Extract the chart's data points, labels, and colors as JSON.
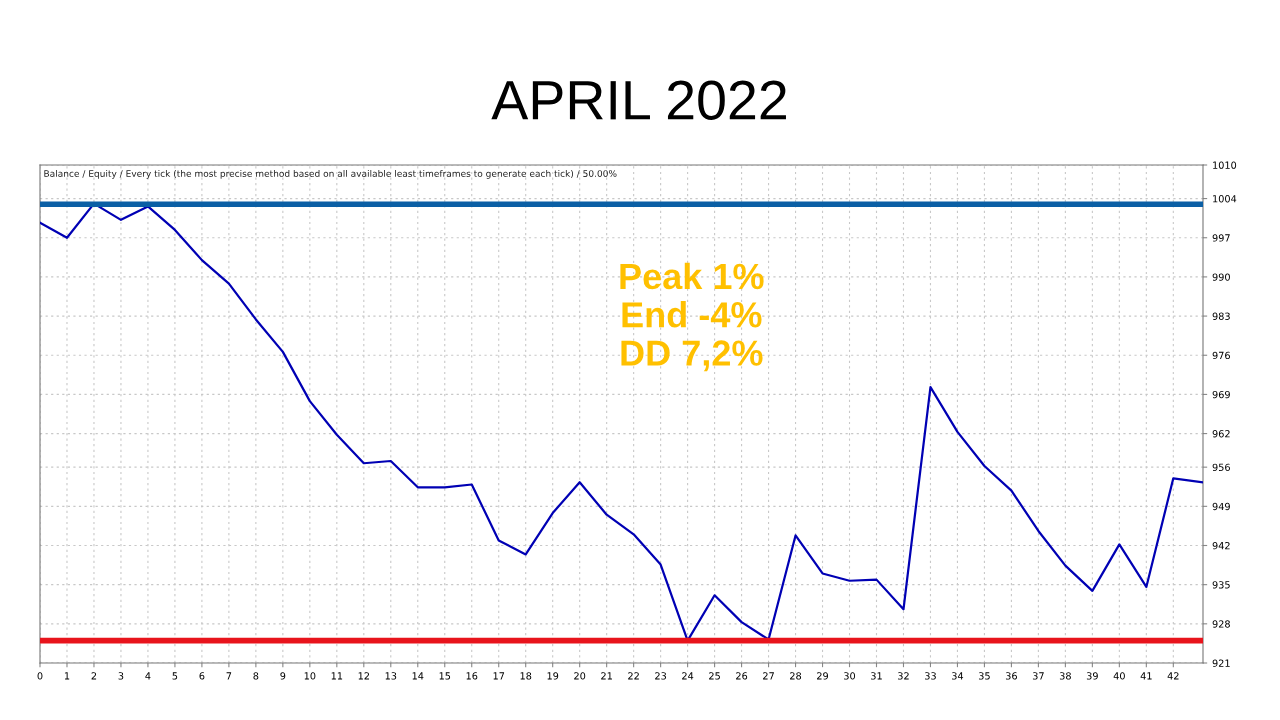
{
  "chart_data": {
    "type": "line",
    "title": "APRIL 2022",
    "subtitle": "Balance / Equity / Every tick (the most precise method based on all available least timeframes to generate each tick) / 50.00%",
    "x": [
      0,
      1,
      2,
      3,
      4,
      5,
      6,
      7,
      8,
      9,
      10,
      11,
      12,
      13,
      14,
      15,
      16,
      17,
      18,
      19,
      20,
      21,
      22,
      23,
      24,
      25,
      26,
      27,
      28,
      29,
      30,
      31,
      32,
      33,
      34,
      35,
      36,
      37,
      38,
      39,
      40,
      41,
      42,
      43.1
    ],
    "series": [
      {
        "color": "#0000b4",
        "values": [
          999.7,
          997.0,
          1003.1,
          1000.2,
          1002.6,
          998.4,
          993.0,
          988.8,
          982.4,
          976.6,
          967.8,
          961.8,
          956.7,
          957.1,
          952.4,
          952.4,
          952.9,
          942.9,
          940.4,
          947.8,
          953.3,
          947.5,
          944.0,
          938.6,
          925.0,
          933.1,
          928.3,
          925.2,
          943.8,
          937.0,
          935.7,
          935.9,
          930.6,
          970.3,
          962.3,
          956.2,
          951.8,
          944.6,
          938.4,
          933.9,
          942.2,
          934.6,
          954.0,
          953.3
        ]
      }
    ],
    "xlim": [
      0,
      43.1
    ],
    "xticks": [
      0,
      1,
      2,
      3,
      4,
      5,
      6,
      7,
      8,
      9,
      10,
      11,
      12,
      13,
      14,
      15,
      16,
      17,
      18,
      19,
      20,
      21,
      22,
      23,
      24,
      25,
      26,
      27,
      28,
      29,
      30,
      31,
      32,
      33,
      34,
      35,
      36,
      37,
      38,
      39,
      40,
      41,
      42
    ],
    "ylim": [
      921,
      1010
    ],
    "yticks": [
      921,
      928,
      935,
      942,
      949,
      956,
      962,
      969,
      976,
      983,
      990,
      997,
      1004,
      1010
    ],
    "ref_lines": [
      {
        "axis": "y",
        "value": 1003,
        "color": "#0b5fa5"
      },
      {
        "axis": "y",
        "value": 925,
        "color": "#e8141c"
      }
    ],
    "annotations": [
      "Peak 1%",
      "End -4%",
      "DD 7,2%"
    ],
    "grid": true,
    "line_style": "solid",
    "marker": "none",
    "legend": false
  }
}
